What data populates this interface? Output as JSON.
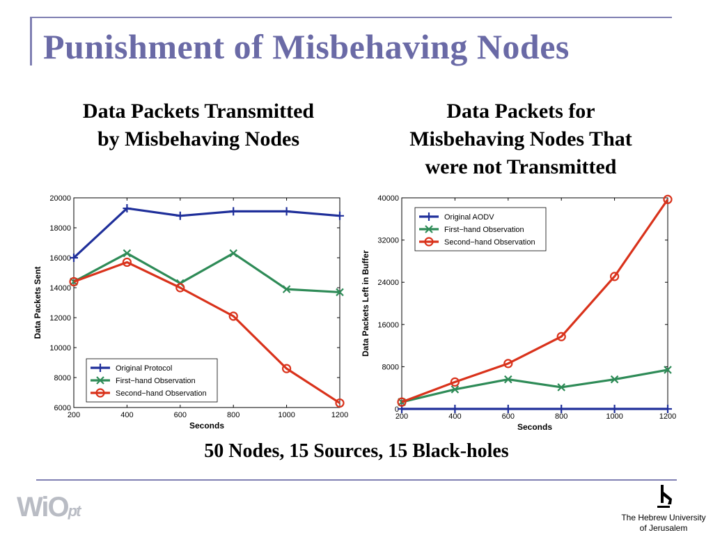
{
  "slide": {
    "title": "Punishment of Misbehaving Nodes",
    "left_heading_lines": [
      "Data Packets Transmitted",
      "by Misbehaving Nodes"
    ],
    "right_heading_lines": [
      "Data Packets for",
      "Misbehaving Nodes That",
      "were not Transmitted"
    ],
    "caption": "50 Nodes, 15 Sources, 15 Black-holes",
    "logo_left": {
      "main": "WiO",
      "small": "pt"
    },
    "logo_right": {
      "line1": "The Hebrew University",
      "line2": "of Jerusalem"
    }
  },
  "colors": {
    "title": "#6a6aa6",
    "blue": "#1f2f9a",
    "green": "#2e8b57",
    "red": "#d9321b",
    "rule": "#7f7fb2"
  },
  "chart_data": [
    {
      "type": "line",
      "xlabel": "Seconds",
      "ylabel": "Data Packets Sent",
      "x": [
        200,
        400,
        600,
        800,
        1000,
        1200
      ],
      "xlim": [
        200,
        1200
      ],
      "ylim": [
        6000,
        20000
      ],
      "xticks": [
        200,
        400,
        600,
        800,
        1000,
        1200
      ],
      "yticks": [
        6000,
        8000,
        10000,
        12000,
        14000,
        16000,
        18000,
        20000
      ],
      "grid": false,
      "legend_position": "bottom-left",
      "series": [
        {
          "name": "Original Protocol",
          "color": "#1f2f9a",
          "marker": "plus",
          "values": [
            16000,
            19300,
            18800,
            19100,
            19100,
            18800
          ]
        },
        {
          "name": "First−hand Observation",
          "color": "#2e8b57",
          "marker": "x",
          "values": [
            14400,
            16300,
            14300,
            16300,
            13900,
            13700
          ]
        },
        {
          "name": "Second−hand Observation",
          "color": "#d9321b",
          "marker": "circle",
          "values": [
            14400,
            15700,
            14000,
            12100,
            8600,
            6300
          ]
        }
      ]
    },
    {
      "type": "line",
      "xlabel": "Seconds",
      "ylabel": "Data Packets Left in Buffer",
      "x": [
        200,
        400,
        600,
        800,
        1000,
        1200
      ],
      "xlim": [
        200,
        1200
      ],
      "ylim": [
        0,
        40000
      ],
      "xticks": [
        200,
        400,
        600,
        800,
        1000,
        1200
      ],
      "yticks": [
        0,
        8000,
        16000,
        24000,
        32000,
        40000
      ],
      "grid": false,
      "legend_position": "top-left",
      "series": [
        {
          "name": "Original AODV",
          "color": "#1f2f9a",
          "marker": "plus",
          "values": [
            0,
            0,
            0,
            0,
            0,
            0
          ]
        },
        {
          "name": "First−hand Observation",
          "color": "#2e8b57",
          "marker": "x",
          "values": [
            1300,
            3700,
            5600,
            4100,
            5600,
            7400
          ]
        },
        {
          "name": "Second−hand Observation",
          "color": "#d9321b",
          "marker": "circle",
          "values": [
            1300,
            5100,
            8600,
            13700,
            25100,
            39700
          ]
        }
      ]
    }
  ]
}
